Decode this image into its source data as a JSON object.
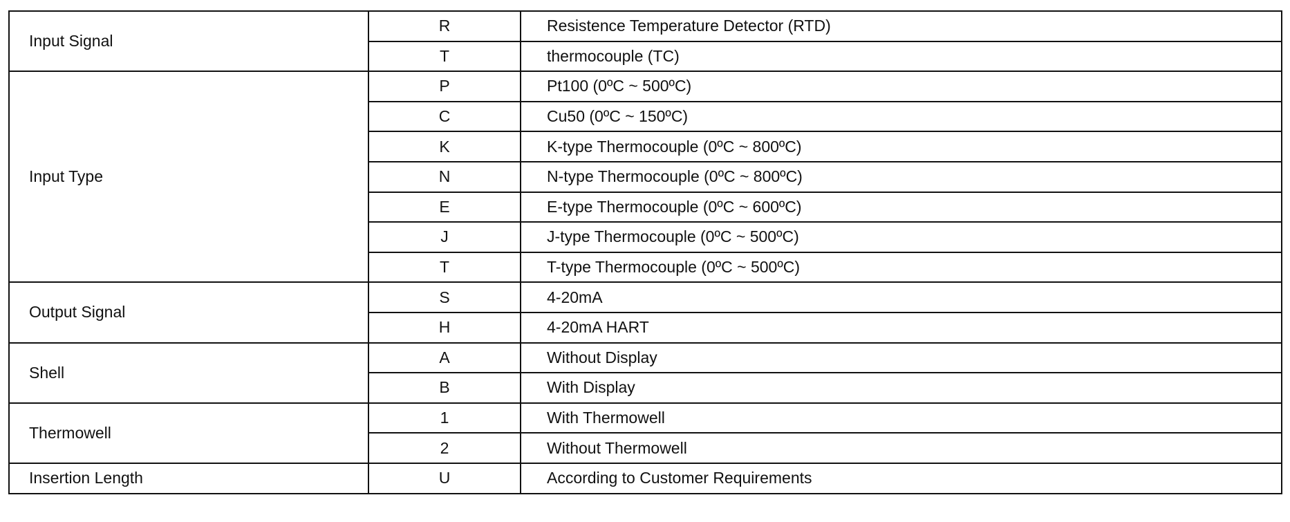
{
  "groups": [
    {
      "label": "Input Signal",
      "rows": [
        {
          "code": "R",
          "desc": "Resistence Temperature Detector (RTD)"
        },
        {
          "code": "T",
          "desc": "thermocouple (TC)"
        }
      ]
    },
    {
      "label": "Input Type",
      "rows": [
        {
          "code": "P",
          "desc": "Pt100 (0ºC ~ 500ºC)"
        },
        {
          "code": "C",
          "desc": "Cu50 (0ºC ~ 150ºC)"
        },
        {
          "code": "K",
          "desc": "K-type Thermocouple (0ºC ~ 800ºC)"
        },
        {
          "code": "N",
          "desc": "N-type Thermocouple (0ºC ~ 800ºC)"
        },
        {
          "code": "E",
          "desc": "E-type Thermocouple (0ºC ~ 600ºC)"
        },
        {
          "code": "J",
          "desc": "J-type Thermocouple (0ºC ~ 500ºC)"
        },
        {
          "code": "T",
          "desc": "T-type Thermocouple (0ºC ~ 500ºC)"
        }
      ]
    },
    {
      "label": "Output Signal",
      "rows": [
        {
          "code": "S",
          "desc": "4-20mA"
        },
        {
          "code": "H",
          "desc": "4-20mA HART"
        }
      ]
    },
    {
      "label": "Shell",
      "rows": [
        {
          "code": "A",
          "desc": "Without Display"
        },
        {
          "code": "B",
          "desc": "With Display"
        }
      ]
    },
    {
      "label": "Thermowell",
      "rows": [
        {
          "code": "1",
          "desc": "With Thermowell"
        },
        {
          "code": "2",
          "desc": "Without Thermowell"
        }
      ]
    },
    {
      "label": "Insertion Length",
      "rows": [
        {
          "code": "U",
          "desc": "According to Customer Requirements"
        }
      ]
    }
  ]
}
